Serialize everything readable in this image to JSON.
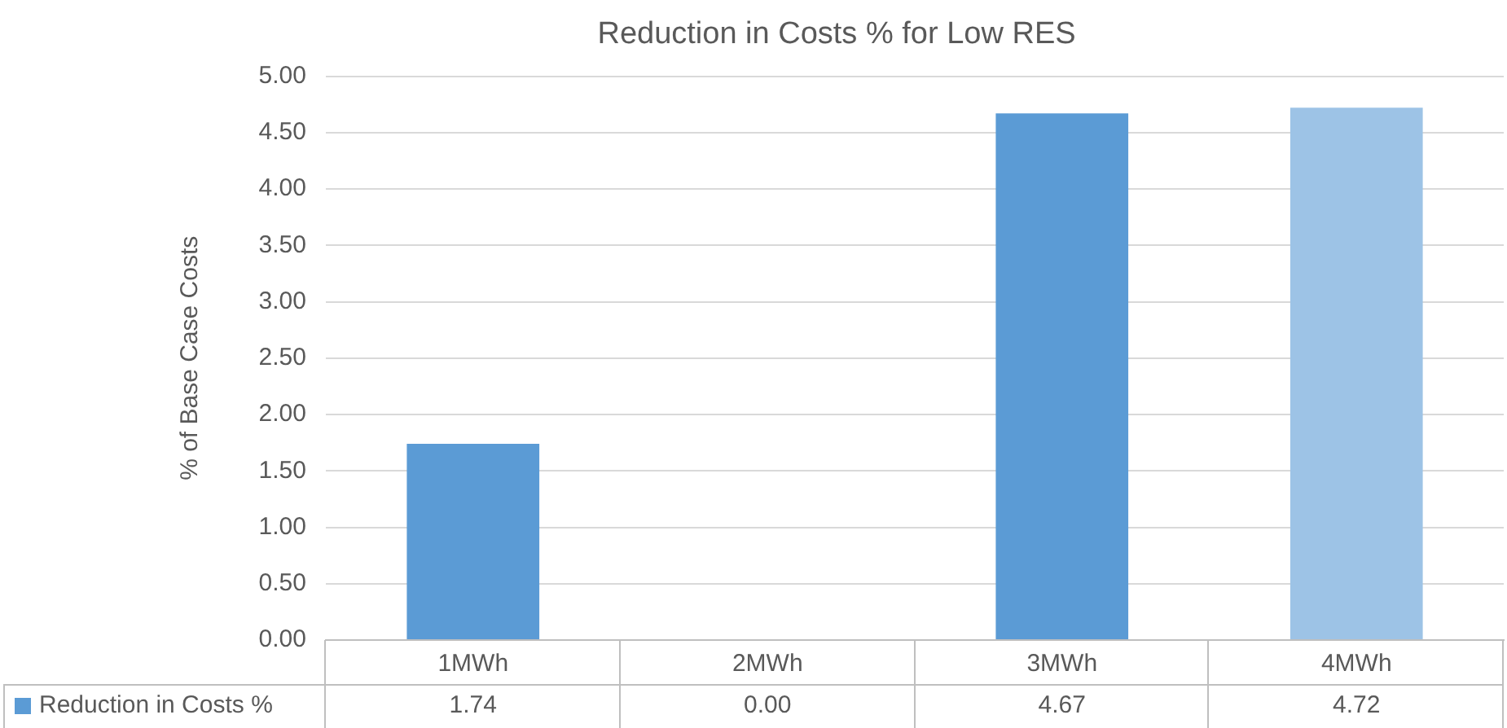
{
  "chart_data": {
    "type": "bar",
    "title": "Reduction in Costs % for Low RES",
    "ylabel": "% of Base Case Costs",
    "categories": [
      "1MWh",
      "2MWh",
      "3MWh",
      "4MWh"
    ],
    "series": [
      {
        "name": "Reduction in Costs %",
        "color": "#5b9bd5",
        "colors": [
          "#5b9bd5",
          "#5b9bd5",
          "#5b9bd5",
          "#9dc3e6"
        ],
        "values": [
          1.74,
          0,
          4.67,
          4.72
        ],
        "value_labels": [
          "1.74",
          "0.00",
          "4.67",
          "4.72"
        ]
      }
    ],
    "ylim": [
      0,
      5
    ],
    "yticks": [
      {
        "value": 0,
        "label": "0.00"
      },
      {
        "value": 0.5,
        "label": "0.50"
      },
      {
        "value": 1,
        "label": "1.00"
      },
      {
        "value": 1.5,
        "label": "1.50"
      },
      {
        "value": 2,
        "label": "2.00"
      },
      {
        "value": 2.5,
        "label": "2.50"
      },
      {
        "value": 3,
        "label": "3.00"
      },
      {
        "value": 3.5,
        "label": "3.50"
      },
      {
        "value": 4,
        "label": "4.00"
      },
      {
        "value": 4.5,
        "label": "4.50"
      },
      {
        "value": 5,
        "label": "5.00"
      }
    ],
    "grid": "y"
  }
}
